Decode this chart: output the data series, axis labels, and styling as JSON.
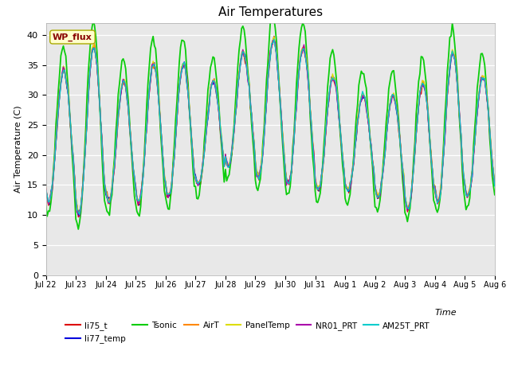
{
  "title": "Air Temperatures",
  "xlabel": "Time",
  "ylabel": "Air Temperature (C)",
  "ylim": [
    0,
    42
  ],
  "yticks": [
    0,
    5,
    10,
    15,
    20,
    25,
    30,
    35,
    40
  ],
  "fig_bg": "#ffffff",
  "plot_bg": "#e8e8e8",
  "series": [
    {
      "label": "li75_t",
      "color": "#dd0000",
      "lw": 1.0
    },
    {
      "label": "li77_temp",
      "color": "#0000dd",
      "lw": 1.0
    },
    {
      "label": "Tsonic",
      "color": "#00cc00",
      "lw": 1.3
    },
    {
      "label": "AirT",
      "color": "#ff8800",
      "lw": 1.0
    },
    {
      "label": "PanelTemp",
      "color": "#dddd00",
      "lw": 1.0
    },
    {
      "label": "NR01_PRT",
      "color": "#aa00aa",
      "lw": 1.0
    },
    {
      "label": "AM25T_PRT",
      "color": "#00cccc",
      "lw": 1.0
    }
  ],
  "annotation_text": "WP_flux",
  "annotation_color": "#880000",
  "annotation_bg": "#ffffcc",
  "x_tick_labels": [
    "Jul 22",
    "Jul 23",
    "Jul 24",
    "Jul 25",
    "Jul 26",
    "Jul 27",
    "Jul 28",
    "Jul 29",
    "Jul 30",
    "Jul 31",
    "Aug 1",
    "Aug 2",
    "Aug 3",
    "Aug 4",
    "Aug 5",
    "Aug 6"
  ],
  "n_days": 15
}
